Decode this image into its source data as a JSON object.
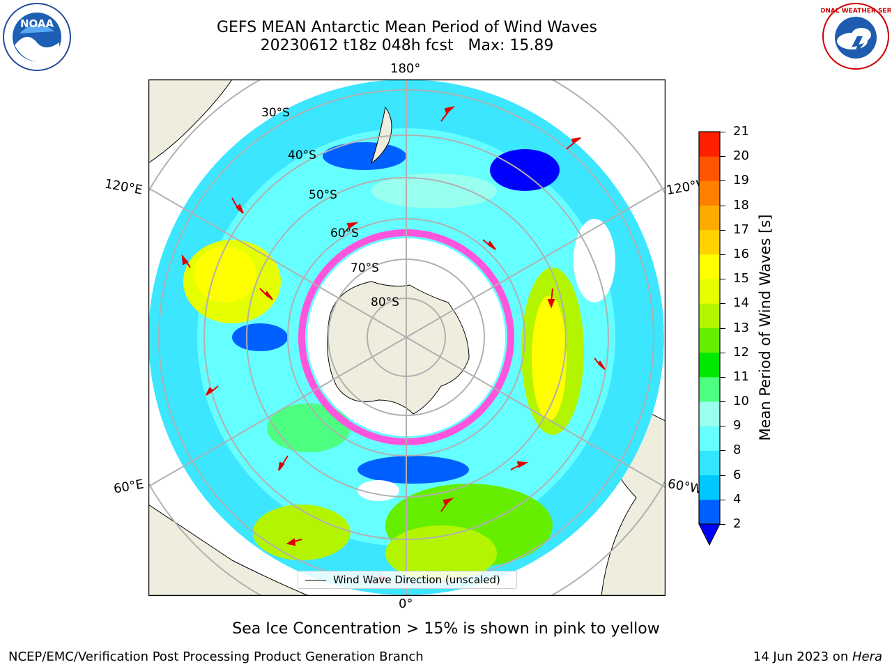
{
  "title": {
    "line1": "GEFS MEAN Antarctic Mean Period of Wind Waves",
    "line2": "20230612 t18z 048h fcst   Max: 15.89"
  },
  "logos": {
    "left": {
      "icon": "noaa-logo",
      "text": "NOAA"
    },
    "right": {
      "icon": "nws-logo",
      "text": "NATIONAL WEATHER SERVICE"
    }
  },
  "map": {
    "projection": "south-polar-stereographic",
    "longitude_labels": {
      "top": "180°",
      "bottom": "0°",
      "upper_left": "120°E",
      "upper_right": "120°W",
      "lower_left": "60°E",
      "lower_right": "60°W"
    },
    "latitude_labels": [
      "30°S",
      "40°S",
      "50°S",
      "60°S",
      "70°S",
      "80°S"
    ],
    "colors": {
      "land": "#efedde",
      "ocean_no_data": "#ffffff",
      "grid": "#b0b0b0",
      "arrows": "#e00000"
    }
  },
  "colorbar": {
    "label": "Mean Period of Wind Waves [s]",
    "ticks": [
      "2",
      "4",
      "6",
      "8",
      "9",
      "10",
      "11",
      "12",
      "13",
      "14",
      "15",
      "16",
      "17",
      "18",
      "19",
      "20",
      "21"
    ],
    "colors": [
      "#0060ff",
      "#00c8ff",
      "#33e6ff",
      "#66ffff",
      "#99ffee",
      "#4cff80",
      "#00e800",
      "#66ee00",
      "#b3f500",
      "#e6ff00",
      "#ffff00",
      "#ffd200",
      "#ffaa00",
      "#ff8000",
      "#ff5500",
      "#ff2000"
    ],
    "extend_color": "#0000ff"
  },
  "legend": {
    "label": "Wind Wave Direction (unscaled)"
  },
  "caption": "Sea Ice Concentration > 15% is shown in pink to yellow",
  "footer": {
    "left": "NCEP/EMC/Verification Post Processing Product Generation Branch",
    "right_date": "14 Jun 2023 on ",
    "right_host": "Hera"
  }
}
